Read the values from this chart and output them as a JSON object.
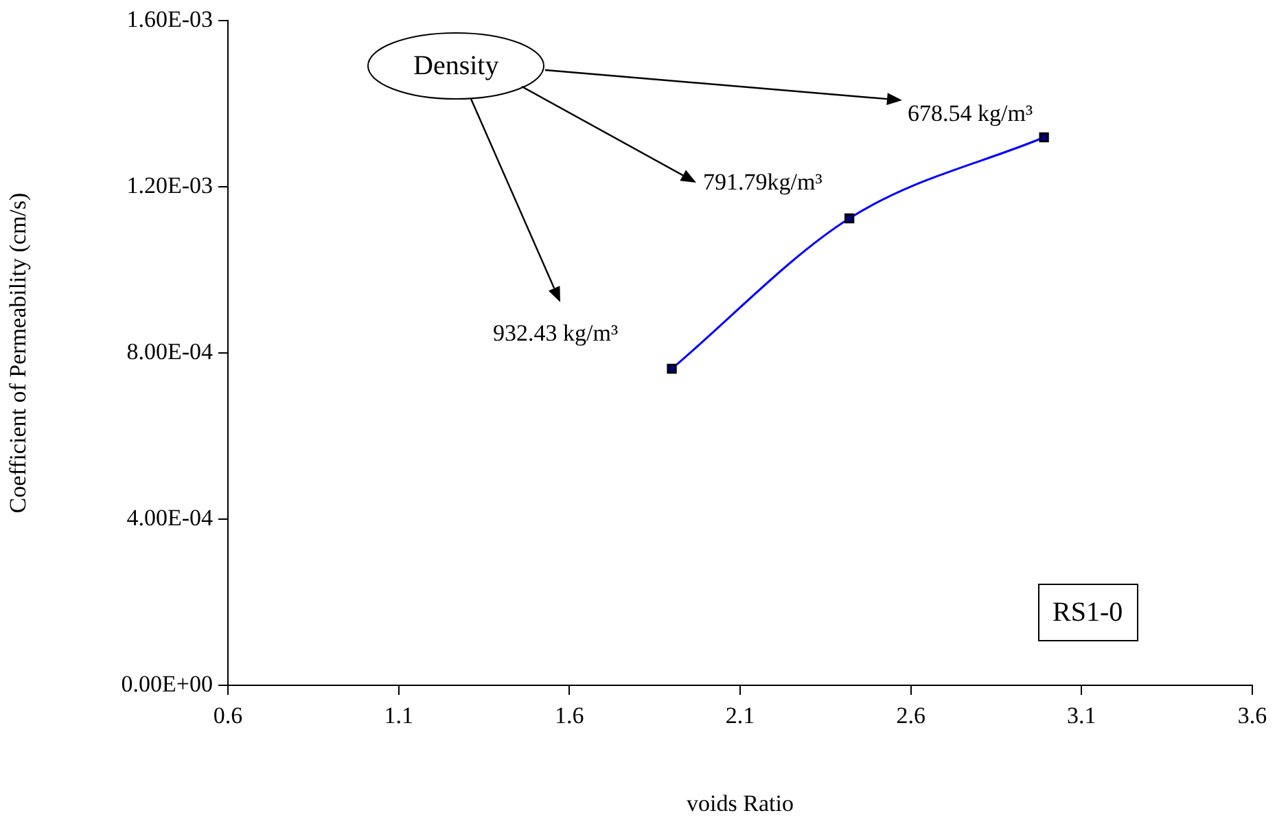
{
  "chart_data": {
    "type": "line",
    "xlabel": "voids Ratio",
    "ylabel": "Coefficient of Permeability (cm/s)",
    "x": [
      1.9,
      2.42,
      2.99
    ],
    "series": [
      {
        "color": "#0000ff",
        "values": [
          0.000762,
          0.001124,
          0.001319
        ]
      }
    ],
    "marker": "square",
    "line_style": "solid",
    "grid": false,
    "legend": false,
    "xlim": [
      0.6,
      3.6
    ],
    "xticks": [
      0.6,
      1.1,
      1.6,
      2.1,
      2.6,
      3.1,
      3.6
    ],
    "ylim": [
      0,
      0.0016
    ],
    "yticks": [
      {
        "value": 0,
        "label": "0.00E+00"
      },
      {
        "value": 0.0004,
        "label": "4.00E-04"
      },
      {
        "value": 0.0008,
        "label": "8.00E-04"
      },
      {
        "value": 0.0012,
        "label": "1.20E-03"
      },
      {
        "value": 0.0016,
        "label": "1.60E-03"
      }
    ],
    "annotations": [
      "Density",
      "678.54 kg/m³",
      "791.79kg/m³",
      "932.43 kg/m³",
      "RS1-0"
    ]
  }
}
